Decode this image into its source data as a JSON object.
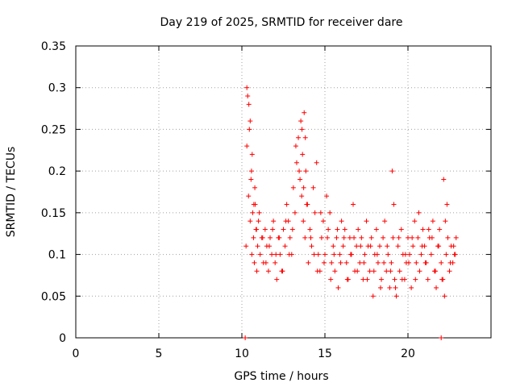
{
  "chart_data": {
    "type": "scatter",
    "title": "Day 219 of 2025, SRMTID for receiver dare",
    "xlabel": "GPS time / hours",
    "ylabel": "SRMTID / TECUs",
    "xlim": [
      0,
      25
    ],
    "ylim": [
      0,
      0.35
    ],
    "xticks": [
      0,
      5,
      10,
      15,
      20
    ],
    "xtick_labels": [
      "0",
      "5",
      "10",
      "15",
      "20"
    ],
    "yticks": [
      0,
      0.05,
      0.1,
      0.15,
      0.2,
      0.25,
      0.3,
      0.35
    ],
    "ytick_labels": [
      "0",
      "0.05",
      "0.1",
      "0.15",
      "0.2",
      "0.25",
      "0.3",
      "0.35"
    ],
    "grid": true,
    "marker": "+",
    "series_color": "#ff0000",
    "series": [
      {
        "name": "SRMTID",
        "x": [
          10.25,
          10.3,
          10.35,
          10.4,
          10.45,
          10.5,
          10.55,
          10.6,
          10.65,
          10.7,
          10.75,
          10.8,
          10.85,
          10.9,
          10.95,
          11.0,
          11.1,
          11.2,
          11.3,
          11.4,
          11.5,
          11.6,
          11.7,
          11.8,
          11.9,
          12.0,
          12.1,
          12.2,
          12.3,
          12.4,
          12.5,
          12.6,
          12.7,
          12.8,
          12.9,
          13.0,
          13.1,
          13.2,
          13.3,
          13.4,
          13.5,
          13.55,
          13.6,
          13.65,
          13.7,
          13.75,
          13.8,
          13.85,
          13.9,
          14.0,
          14.1,
          14.2,
          14.3,
          14.4,
          14.5,
          14.6,
          14.7,
          14.8,
          14.9,
          15.0,
          15.1,
          15.2,
          15.3,
          15.4,
          15.5,
          15.6,
          15.7,
          15.8,
          15.9,
          16.0,
          16.1,
          16.2,
          16.3,
          16.4,
          16.5,
          16.6,
          16.7,
          16.8,
          16.9,
          17.0,
          17.1,
          17.2,
          17.3,
          17.4,
          17.5,
          17.6,
          17.7,
          17.8,
          17.9,
          18.0,
          18.1,
          18.2,
          18.3,
          18.4,
          18.5,
          18.6,
          18.7,
          18.8,
          18.9,
          19.0,
          19.1,
          19.2,
          19.3,
          19.4,
          19.5,
          19.6,
          19.7,
          19.8,
          19.9,
          20.0,
          20.1,
          20.2,
          20.3,
          20.4,
          20.5,
          20.6,
          20.7,
          20.8,
          20.9,
          21.0,
          21.1,
          21.2,
          21.3,
          21.4,
          21.5,
          21.6,
          21.7,
          21.8,
          21.9,
          22.0,
          22.1,
          22.2,
          22.3,
          22.4,
          22.5,
          22.6,
          22.7,
          22.8,
          22.9,
          10.3,
          10.42,
          10.5,
          10.58,
          10.62,
          10.72,
          10.78,
          10.88,
          11.05,
          11.25,
          11.45,
          11.65,
          11.85,
          12.05,
          12.25,
          12.45,
          12.65,
          12.85,
          13.05,
          13.25,
          13.45,
          13.62,
          13.72,
          13.82,
          13.95,
          14.15,
          14.35,
          14.55,
          14.75,
          14.95,
          15.15,
          15.35,
          15.55,
          15.75,
          15.95,
          16.15,
          16.35,
          16.55,
          16.75,
          16.95,
          17.15,
          17.35,
          17.55,
          17.75,
          17.95,
          18.15,
          18.35,
          18.55,
          18.75,
          18.95,
          19.05,
          19.15,
          19.25,
          19.45,
          19.65,
          19.85,
          20.05,
          20.25,
          20.45,
          20.65,
          20.85,
          21.05,
          21.25,
          21.45,
          21.65,
          21.85,
          22.05,
          22.15,
          22.25,
          22.35,
          22.55,
          22.75,
          22.85,
          10.2,
          22.0
        ],
        "y": [
          0.11,
          0.23,
          0.29,
          0.17,
          0.25,
          0.14,
          0.19,
          0.1,
          0.15,
          0.12,
          0.09,
          0.16,
          0.13,
          0.08,
          0.11,
          0.14,
          0.1,
          0.12,
          0.09,
          0.13,
          0.11,
          0.08,
          0.12,
          0.1,
          0.14,
          0.09,
          0.07,
          0.12,
          0.1,
          0.08,
          0.13,
          0.11,
          0.16,
          0.14,
          0.12,
          0.1,
          0.18,
          0.15,
          0.21,
          0.24,
          0.19,
          0.26,
          0.17,
          0.22,
          0.14,
          0.27,
          0.12,
          0.2,
          0.16,
          0.09,
          0.13,
          0.11,
          0.18,
          0.15,
          0.21,
          0.1,
          0.08,
          0.12,
          0.14,
          0.1,
          0.17,
          0.13,
          0.15,
          0.09,
          0.11,
          0.08,
          0.12,
          0.06,
          0.1,
          0.14,
          0.11,
          0.13,
          0.09,
          0.07,
          0.12,
          0.1,
          0.16,
          0.08,
          0.11,
          0.13,
          0.09,
          0.12,
          0.07,
          0.1,
          0.14,
          0.11,
          0.08,
          0.12,
          0.05,
          0.1,
          0.13,
          0.09,
          0.11,
          0.07,
          0.12,
          0.14,
          0.08,
          0.1,
          0.06,
          0.09,
          0.12,
          0.07,
          0.05,
          0.11,
          0.08,
          0.13,
          0.1,
          0.07,
          0.09,
          0.12,
          0.1,
          0.06,
          0.11,
          0.14,
          0.09,
          0.12,
          0.08,
          0.1,
          0.13,
          0.11,
          0.09,
          0.07,
          0.12,
          0.1,
          0.14,
          0.08,
          0.06,
          0.11,
          0.13,
          0.09,
          0.07,
          0.05,
          0.1,
          0.12,
          0.08,
          0.11,
          0.09,
          0.1,
          0.12,
          0.3,
          0.28,
          0.26,
          0.2,
          0.22,
          0.16,
          0.18,
          0.13,
          0.15,
          0.12,
          0.09,
          0.11,
          0.13,
          0.1,
          0.12,
          0.08,
          0.14,
          0.1,
          0.13,
          0.23,
          0.2,
          0.25,
          0.18,
          0.24,
          0.16,
          0.12,
          0.1,
          0.08,
          0.15,
          0.09,
          0.12,
          0.07,
          0.1,
          0.13,
          0.09,
          0.12,
          0.07,
          0.1,
          0.12,
          0.08,
          0.11,
          0.09,
          0.07,
          0.11,
          0.08,
          0.1,
          0.06,
          0.09,
          0.11,
          0.08,
          0.2,
          0.16,
          0.06,
          0.12,
          0.07,
          0.1,
          0.09,
          0.12,
          0.07,
          0.15,
          0.11,
          0.09,
          0.13,
          0.12,
          0.08,
          0.11,
          0.07,
          0.19,
          0.14,
          0.16,
          0.09,
          0.11,
          0.1,
          0.0,
          0.0
        ]
      }
    ]
  }
}
